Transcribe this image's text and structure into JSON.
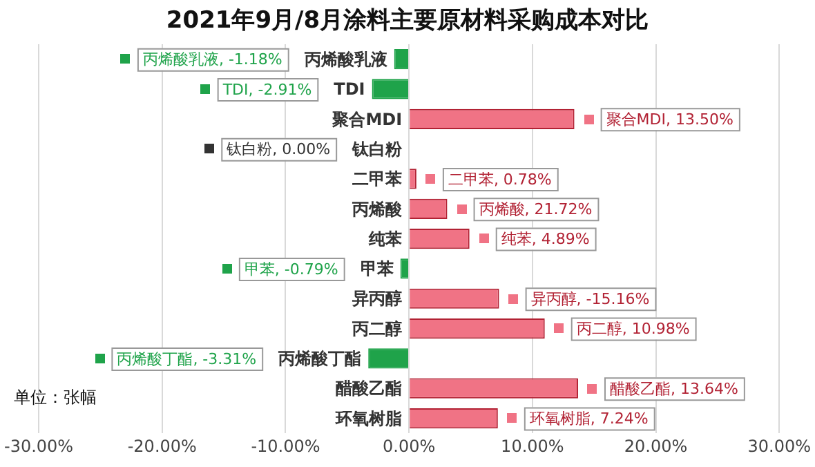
{
  "chart_data": {
    "type": "bar",
    "orientation": "horizontal",
    "title": "2021年9月/8月涂料主要原材料采购成本对比",
    "categories": [
      "丙烯酸乳液",
      "TDI",
      "聚合MDI",
      "钛白粉",
      "二甲苯",
      "丙烯酸",
      "纯苯",
      "甲苯",
      "异丙醇",
      "丙二醇",
      "丙烯酸丁酯",
      "醋酸乙酯",
      "环氧树脂"
    ],
    "values": [
      -1.2,
      -3.0,
      13.4,
      0,
      0.6,
      3.1,
      4.9,
      -0.7,
      7.3,
      11.0,
      -3.3,
      13.7,
      7.2
    ],
    "colors": [
      "#1fa34a",
      "#1fa34a",
      "#f07385",
      "#333333",
      "#f07385",
      "#f07385",
      "#f07385",
      "#1fa34a",
      "#f07385",
      "#f07385",
      "#1fa34a",
      "#f07385",
      "#f07385"
    ],
    "xlim": [
      -30,
      30
    ],
    "xticks": [
      {
        "value": -30,
        "label": "-30.00%"
      },
      {
        "value": -20,
        "label": "-20.00%"
      },
      {
        "value": -10,
        "label": "-10.00%"
      },
      {
        "value": 0,
        "label": "0.00%"
      },
      {
        "value": 10,
        "label": "10.00%"
      },
      {
        "value": 20,
        "label": "20.00%"
      },
      {
        "value": 30,
        "label": "30.00%"
      }
    ],
    "grid": "x",
    "legend": false,
    "annotations": [
      "单位：张幅",
      "丙烯酸乳液, -1.18%",
      "TDI, -2.91%",
      "聚合MDI, 13.50%",
      "钛白粉, 0.00%",
      "二甲苯, 0.78%",
      "丙烯酸, 21.72%",
      "纯苯, 4.89%",
      "甲苯, -0.79%",
      "异丙醇, -15.16%",
      "丙二醇, 10.98%",
      "丙烯酸丁酯, -3.31%",
      "醋酸乙酯, 13.64%",
      "环氧树脂, 7.24%"
    ]
  }
}
